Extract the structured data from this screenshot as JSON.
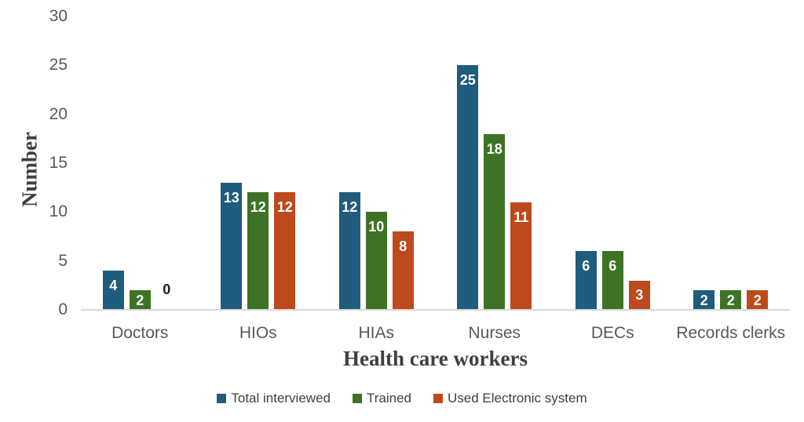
{
  "chart_data": {
    "type": "bar",
    "title": "",
    "xlabel": "Health care workers",
    "ylabel": "Number",
    "categories": [
      "Doctors",
      "HIOs",
      "HIAs",
      "Nurses",
      "DECs",
      "Records clerks"
    ],
    "series": [
      {
        "name": "Total interviewed",
        "color": "#1F5C7D",
        "values": [
          4,
          13,
          12,
          25,
          6,
          2
        ]
      },
      {
        "name": "Trained",
        "color": "#3E7326",
        "values": [
          2,
          12,
          10,
          18,
          6,
          2
        ]
      },
      {
        "name": "Used Electronic system",
        "color": "#BC4A1D",
        "values": [
          0,
          12,
          8,
          11,
          3,
          2
        ]
      }
    ],
    "ylim": [
      0,
      30
    ],
    "yticks": [
      0,
      5,
      10,
      15,
      20,
      25,
      30
    ],
    "grid": false,
    "legend_position": "bottom",
    "value_labels": "inside-end"
  },
  "styles": {
    "axis_text_color": "#595959",
    "title_text_color": "#3F3F3F",
    "legend_text_color": "#3F3F3F",
    "zero_label_color": "#1F1F1F",
    "baseline_color": "#D9D9D9",
    "background": "#FFFFFF"
  }
}
